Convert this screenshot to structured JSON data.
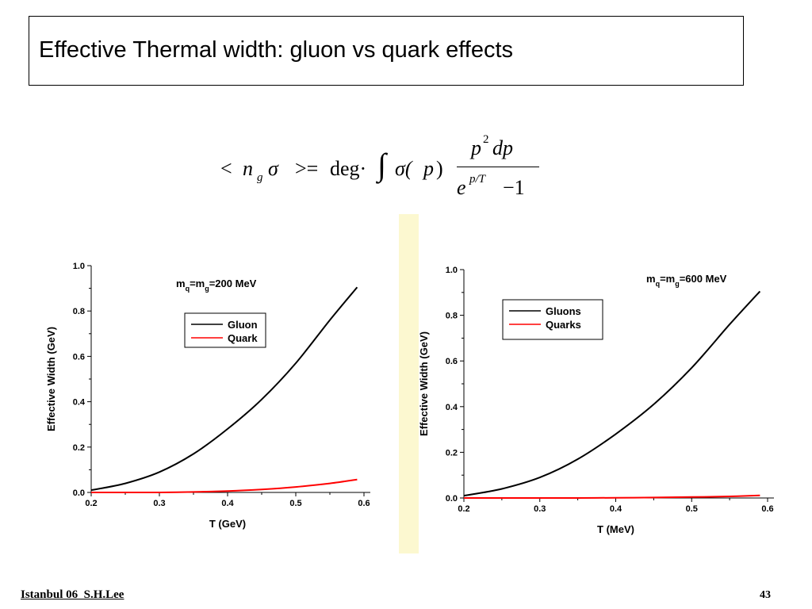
{
  "slide": {
    "title": "Effective Thermal width:  gluon vs quark effects",
    "footer_left": "Istanbul 06  S.H.Lee",
    "page_number": "43",
    "strip_color": "#fcf8d0"
  },
  "formula": {
    "lhs_open": "<",
    "n": "n",
    "sub_g": "g",
    "sigma": "σ",
    "lhs_close": ">=",
    "deg": "deg·",
    "integral": "∫",
    "sigma_p": "σ(",
    "p": "p",
    "close_paren": ")",
    "num_p": "p",
    "num_sup": "2",
    "num_dp": "dp",
    "den_e": "e",
    "den_exp": "p/T",
    "den_minus_one": "−1"
  },
  "chart_data": [
    {
      "type": "line",
      "annotation": "m_q=m_g=200 MeV",
      "annotation_parts": {
        "m1": "m",
        "s1": "q",
        "eq": "=m",
        "s2": "g",
        "rest": "=200 MeV"
      },
      "xlabel": "T (GeV)",
      "ylabel": "Effective Width (GeV)",
      "xlim": [
        0.2,
        0.6
      ],
      "ylim": [
        0.0,
        1.0
      ],
      "xticks": [
        "0.2",
        "0.3",
        "0.4",
        "0.5",
        "0.6"
      ],
      "yticks": [
        "0.0",
        "0.2",
        "0.4",
        "0.6",
        "0.8",
        "1.0"
      ],
      "legend_position": "center-right",
      "grid": false,
      "series": [
        {
          "name": "Gluon",
          "color": "#000000",
          "x": [
            0.2,
            0.25,
            0.3,
            0.35,
            0.4,
            0.45,
            0.5,
            0.55,
            0.59
          ],
          "y": [
            0.01,
            0.04,
            0.09,
            0.17,
            0.28,
            0.41,
            0.57,
            0.76,
            0.905
          ]
        },
        {
          "name": "Quark",
          "color": "#ff0000",
          "x": [
            0.2,
            0.25,
            0.3,
            0.35,
            0.4,
            0.45,
            0.5,
            0.55,
            0.59
          ],
          "y": [
            0.0,
            0.0,
            0.0,
            0.002,
            0.006,
            0.013,
            0.024,
            0.04,
            0.057
          ]
        }
      ]
    },
    {
      "type": "line",
      "annotation": "m_q=m_g=600 MeV",
      "annotation_parts": {
        "m1": "m",
        "s1": "q",
        "eq": "=m",
        "s2": "g",
        "rest": "=600 MeV"
      },
      "xlabel": "T (MeV)",
      "ylabel": "Effective Width (GeV)",
      "xlim": [
        0.2,
        0.6
      ],
      "ylim": [
        0.0,
        1.0
      ],
      "xticks": [
        "0.2",
        "0.3",
        "0.4",
        "0.5",
        "0.6"
      ],
      "yticks": [
        "0.0",
        "0.2",
        "0.4",
        "0.6",
        "0.8",
        "1.0"
      ],
      "legend_position": "top-left",
      "grid": false,
      "series": [
        {
          "name": "Gluons",
          "color": "#000000",
          "x": [
            0.2,
            0.25,
            0.3,
            0.35,
            0.4,
            0.45,
            0.5,
            0.55,
            0.59
          ],
          "y": [
            0.01,
            0.04,
            0.09,
            0.17,
            0.28,
            0.41,
            0.57,
            0.76,
            0.905
          ]
        },
        {
          "name": "Quarks",
          "color": "#ff0000",
          "x": [
            0.2,
            0.25,
            0.3,
            0.35,
            0.4,
            0.45,
            0.5,
            0.55,
            0.59
          ],
          "y": [
            0.0,
            0.0,
            0.0,
            0.0,
            0.001,
            0.002,
            0.004,
            0.007,
            0.011
          ]
        }
      ]
    }
  ]
}
